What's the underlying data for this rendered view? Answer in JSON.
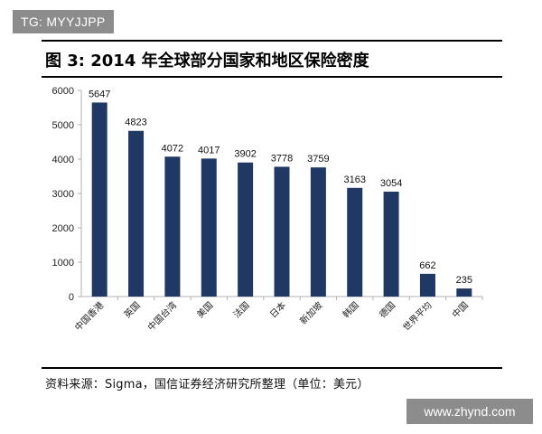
{
  "watermark_top": "TG: MYYJJPP",
  "watermark_bottom": "www.zhynd.com",
  "figure_title": "图 3:  2014 年全球部分国家和地区保险密度",
  "source": "资料来源：Sigma，国信证券经济研究所整理（单位：美元）",
  "chart_data": {
    "type": "bar",
    "categories": [
      "中国香港",
      "英国",
      "中国台湾",
      "美国",
      "法国",
      "日本",
      "新加坡",
      "韩国",
      "德国",
      "世界平均",
      "中国"
    ],
    "values": [
      5647,
      4823,
      4072,
      4017,
      3902,
      3778,
      3759,
      3163,
      3054,
      662,
      235
    ],
    "data_labels": [
      "5647",
      "4823",
      "4072",
      "4017",
      "3902",
      "3778",
      "3759",
      "3163",
      "3054",
      "662",
      "235"
    ],
    "ylim": [
      0,
      6000
    ],
    "yticks": [
      0,
      1000,
      2000,
      3000,
      4000,
      5000,
      6000
    ],
    "ytick_labels": [
      "0",
      "1000",
      "2000",
      "3000",
      "4000",
      "5000",
      "6000"
    ],
    "bar_color": "#1f3864",
    "grid": false,
    "legend": "none"
  }
}
